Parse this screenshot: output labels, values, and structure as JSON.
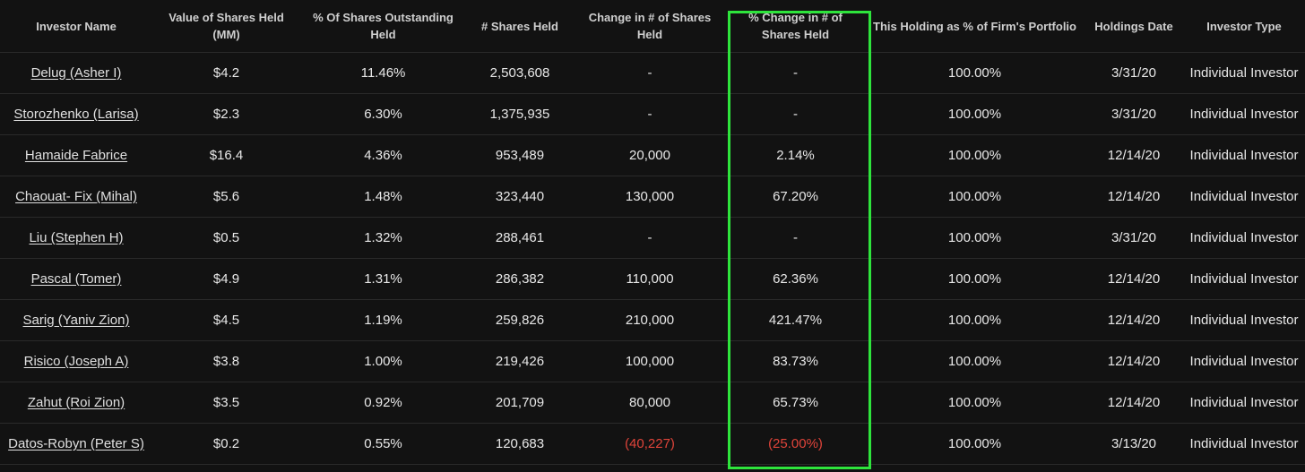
{
  "table": {
    "headers": [
      "Investor Name",
      "Value of Shares Held (MM)",
      "% Of Shares Outstanding Held",
      "# Shares Held",
      "Change in # of Shares Held",
      "% Change in # of Shares Held",
      "This Holding as % of Firm's Portfolio",
      "Holdings Date",
      "Investor Type"
    ],
    "rows": [
      {
        "name": "Delug (Asher I)",
        "value": "$4.2",
        "pct_outstanding": "11.46%",
        "shares": "2,503,608",
        "change": "-",
        "pct_change": "-",
        "portfolio_pct": "100.00%",
        "date": "3/31/20",
        "type": "Individual Investor"
      },
      {
        "name": "Storozhenko (Larisa)",
        "value": "$2.3",
        "pct_outstanding": "6.30%",
        "shares": "1,375,935",
        "change": "-",
        "pct_change": "-",
        "portfolio_pct": "100.00%",
        "date": "3/31/20",
        "type": "Individual Investor"
      },
      {
        "name": "Hamaide Fabrice",
        "value": "$16.4",
        "pct_outstanding": "4.36%",
        "shares": "953,489",
        "change": "20,000",
        "pct_change": "2.14%",
        "portfolio_pct": "100.00%",
        "date": "12/14/20",
        "type": "Individual Investor"
      },
      {
        "name": "Chaouat- Fix (Mihal)",
        "value": "$5.6",
        "pct_outstanding": "1.48%",
        "shares": "323,440",
        "change": "130,000",
        "pct_change": "67.20%",
        "portfolio_pct": "100.00%",
        "date": "12/14/20",
        "type": "Individual Investor"
      },
      {
        "name": "Liu (Stephen H)",
        "value": "$0.5",
        "pct_outstanding": "1.32%",
        "shares": "288,461",
        "change": "-",
        "pct_change": "-",
        "portfolio_pct": "100.00%",
        "date": "3/31/20",
        "type": "Individual Investor"
      },
      {
        "name": "Pascal (Tomer)",
        "value": "$4.9",
        "pct_outstanding": "1.31%",
        "shares": "286,382",
        "change": "110,000",
        "pct_change": "62.36%",
        "portfolio_pct": "100.00%",
        "date": "12/14/20",
        "type": "Individual Investor"
      },
      {
        "name": "Sarig (Yaniv Zion)",
        "value": "$4.5",
        "pct_outstanding": "1.19%",
        "shares": "259,826",
        "change": "210,000",
        "pct_change": "421.47%",
        "portfolio_pct": "100.00%",
        "date": "12/14/20",
        "type": "Individual Investor"
      },
      {
        "name": "Risico (Joseph A)",
        "value": "$3.8",
        "pct_outstanding": "1.00%",
        "shares": "219,426",
        "change": "100,000",
        "pct_change": "83.73%",
        "portfolio_pct": "100.00%",
        "date": "12/14/20",
        "type": "Individual Investor"
      },
      {
        "name": "Zahut (Roi Zion)",
        "value": "$3.5",
        "pct_outstanding": "0.92%",
        "shares": "201,709",
        "change": "80,000",
        "pct_change": "65.73%",
        "portfolio_pct": "100.00%",
        "date": "12/14/20",
        "type": "Individual Investor"
      },
      {
        "name": "Datos-Robyn (Peter S)",
        "value": "$0.2",
        "pct_outstanding": "0.55%",
        "shares": "120,683",
        "change": "(40,227)",
        "pct_change": "(25.00%)",
        "portfolio_pct": "100.00%",
        "date": "3/13/20",
        "type": "Individual Investor",
        "negative": true
      }
    ]
  },
  "colors": {
    "background": "#121212",
    "highlight": "#2ee43c",
    "negative": "#e0443a"
  }
}
